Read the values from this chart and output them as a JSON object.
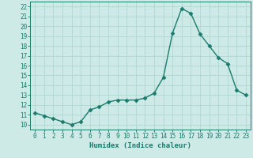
{
  "x": [
    0,
    1,
    2,
    3,
    4,
    5,
    6,
    7,
    8,
    9,
    10,
    11,
    12,
    13,
    14,
    15,
    16,
    17,
    18,
    19,
    20,
    21,
    22,
    23
  ],
  "y": [
    11.2,
    10.9,
    10.6,
    10.3,
    10.0,
    10.3,
    11.5,
    11.8,
    12.3,
    12.5,
    12.5,
    12.5,
    12.7,
    13.2,
    14.8,
    19.3,
    21.8,
    21.3,
    19.2,
    18.0,
    16.8,
    16.2,
    13.5,
    13.0
  ],
  "line_color": "#1a7a6e",
  "marker": "D",
  "markersize": 2.5,
  "linewidth": 1.0,
  "xlabel": "Humidex (Indice chaleur)",
  "ylabel": "",
  "xlim": [
    -0.5,
    23.5
  ],
  "ylim": [
    9.5,
    22.5
  ],
  "yticks": [
    10,
    11,
    12,
    13,
    14,
    15,
    16,
    17,
    18,
    19,
    20,
    21,
    22
  ],
  "xticks": [
    0,
    1,
    2,
    3,
    4,
    5,
    6,
    7,
    8,
    9,
    10,
    11,
    12,
    13,
    14,
    15,
    16,
    17,
    18,
    19,
    20,
    21,
    22,
    23
  ],
  "bg_color": "#ceeae6",
  "grid_color": "#b0d8d2",
  "label_fontsize": 6.5,
  "tick_fontsize": 5.5
}
